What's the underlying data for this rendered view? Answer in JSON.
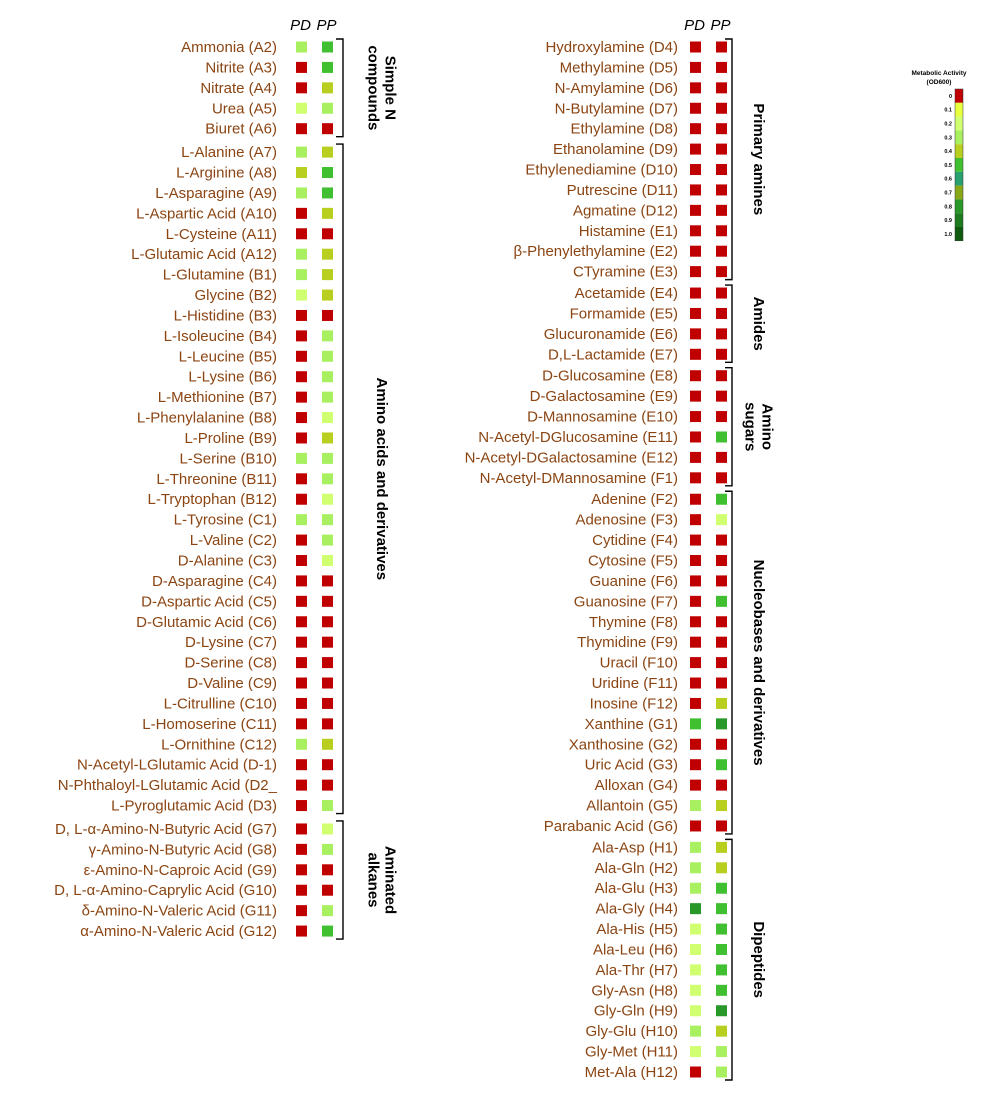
{
  "chart_data": {
    "type": "heatmap",
    "columns": [
      "PD",
      "PP"
    ],
    "legend": {
      "title": "Metabolic Activity",
      "unit": "(OD600)",
      "ticks": [
        "0",
        "0.1",
        "0.2",
        "0.3",
        "0.4",
        "0.5",
        "0.6",
        "0.7",
        "0.8",
        "0.9",
        "1.0"
      ]
    },
    "colors": {
      "0": "#c00000",
      "0.1": "#e8ff40",
      "0.2": "#d0ff70",
      "0.3": "#a8f060",
      "0.4": "#b8cf20",
      "0.5": "#40c030",
      "0.6": "#28a070",
      "0.7": "#88a818",
      "0.8": "#289828",
      "0.9": "#1e7a1e",
      "1.0": "#0f5a0f"
    },
    "panels": [
      {
        "groups": [
          {
            "label": [
              "Simple N",
              "compounds"
            ],
            "rows": [
              {
                "name": "Ammonia (A2)",
                "values": [
                  0.3,
                  0.5
                ]
              },
              {
                "name": "Nitrite (A3)",
                "values": [
                  0,
                  0.5
                ]
              },
              {
                "name": "Nitrate (A4)",
                "values": [
                  0,
                  0.4
                ]
              },
              {
                "name": "Urea (A5)",
                "values": [
                  0.2,
                  0.3
                ]
              },
              {
                "name": "Biuret (A6)",
                "values": [
                  0,
                  0
                ]
              }
            ]
          },
          {
            "label": [
              "Amino acids and derivatives"
            ],
            "rows": [
              {
                "name": "L-Alanine (A7)",
                "values": [
                  0.3,
                  0.4
                ]
              },
              {
                "name": "L-Arginine (A8)",
                "values": [
                  0.4,
                  0.5
                ]
              },
              {
                "name": "L-Asparagine (A9)",
                "values": [
                  0.3,
                  0.5
                ]
              },
              {
                "name": "L-Aspartic Acid (A10)",
                "values": [
                  0,
                  0.4
                ]
              },
              {
                "name": "L-Cysteine (A11)",
                "values": [
                  0,
                  0
                ]
              },
              {
                "name": "L-Glutamic Acid (A12)",
                "values": [
                  0.3,
                  0.4
                ]
              },
              {
                "name": "L-Glutamine (B1)",
                "values": [
                  0.3,
                  0.4
                ]
              },
              {
                "name": "Glycine (B2)",
                "values": [
                  0.2,
                  0.4
                ]
              },
              {
                "name": "L-Histidine (B3)",
                "values": [
                  0,
                  0
                ]
              },
              {
                "name": "L-Isoleucine (B4)",
                "values": [
                  0,
                  0.3
                ]
              },
              {
                "name": "L-Leucine (B5)",
                "values": [
                  0,
                  0.3
                ]
              },
              {
                "name": "L-Lysine (B6)",
                "values": [
                  0,
                  0.3
                ]
              },
              {
                "name": "L-Methionine (B7)",
                "values": [
                  0,
                  0.3
                ]
              },
              {
                "name": "L-Phenylalanine (B8)",
                "values": [
                  0,
                  0.2
                ]
              },
              {
                "name": "L-Proline (B9)",
                "values": [
                  0,
                  0.4
                ]
              },
              {
                "name": "L-Serine (B10)",
                "values": [
                  0.3,
                  0.3
                ]
              },
              {
                "name": "L-Threonine (B11)",
                "values": [
                  0,
                  0.3
                ]
              },
              {
                "name": "L-Tryptophan (B12)",
                "values": [
                  0,
                  0.2
                ]
              },
              {
                "name": "L-Tyrosine (C1)",
                "values": [
                  0.3,
                  0.3
                ]
              },
              {
                "name": "L-Valine (C2)",
                "values": [
                  0,
                  0.3
                ]
              },
              {
                "name": "D-Alanine (C3)",
                "values": [
                  0,
                  0.2
                ]
              },
              {
                "name": "D-Asparagine (C4)",
                "values": [
                  0,
                  0
                ]
              },
              {
                "name": "D-Aspartic Acid (C5)",
                "values": [
                  0,
                  0
                ]
              },
              {
                "name": "D-Glutamic Acid (C6)",
                "values": [
                  0,
                  0
                ]
              },
              {
                "name": "D-Lysine (C7)",
                "values": [
                  0,
                  0
                ]
              },
              {
                "name": "D-Serine (C8)",
                "values": [
                  0,
                  0
                ]
              },
              {
                "name": "D-Valine (C9)",
                "values": [
                  0,
                  0
                ]
              },
              {
                "name": "L-Citrulline (C10)",
                "values": [
                  0,
                  0
                ]
              },
              {
                "name": "L-Homoserine (C11)",
                "values": [
                  0,
                  0
                ]
              },
              {
                "name": "L-Ornithine (C12)",
                "values": [
                  0.3,
                  0.4
                ]
              },
              {
                "name": "N-Acetyl-LGlutamic Acid (D-1)",
                "values": [
                  0,
                  0
                ]
              },
              {
                "name": "N-Phthaloyl-LGlutamic Acid (D2_",
                "values": [
                  0,
                  0
                ]
              },
              {
                "name": "L-Pyroglutamic Acid (D3)",
                "values": [
                  0,
                  0.3
                ]
              }
            ]
          },
          {
            "label": [
              "Aminated",
              "alkanes"
            ],
            "rows": [
              {
                "name": "D, L-α-Amino-N-Butyric Acid (G7)",
                "values": [
                  0,
                  0.2
                ]
              },
              {
                "name": "γ-Amino-N-Butyric Acid (G8)",
                "values": [
                  0,
                  0.3
                ]
              },
              {
                "name": "ε-Amino-N-Caproic Acid (G9)",
                "values": [
                  0,
                  0
                ]
              },
              {
                "name": "D, L-α-Amino-Caprylic Acid (G10)",
                "values": [
                  0,
                  0
                ]
              },
              {
                "name": "δ-Amino-N-Valeric Acid (G11)",
                "values": [
                  0,
                  0.3
                ]
              },
              {
                "name": "α-Amino-N-Valeric Acid (G12)",
                "values": [
                  0,
                  0.5
                ]
              }
            ]
          }
        ]
      },
      {
        "groups": [
          {
            "label": [
              "Primary amines"
            ],
            "rows": [
              {
                "name": "Hydroxylamine (D4)",
                "values": [
                  0,
                  0
                ]
              },
              {
                "name": "Methylamine (D5)",
                "values": [
                  0,
                  0
                ]
              },
              {
                "name": "N-Amylamine (D6)",
                "values": [
                  0,
                  0
                ]
              },
              {
                "name": "N-Butylamine (D7)",
                "values": [
                  0,
                  0
                ]
              },
              {
                "name": "Ethylamine (D8)",
                "values": [
                  0,
                  0
                ]
              },
              {
                "name": "Ethanolamine (D9)",
                "values": [
                  0,
                  0
                ]
              },
              {
                "name": "Ethylenediamine (D10)",
                "values": [
                  0,
                  0
                ]
              },
              {
                "name": "Putrescine (D11)",
                "values": [
                  0,
                  0
                ]
              },
              {
                "name": "Agmatine (D12)",
                "values": [
                  0,
                  0
                ]
              },
              {
                "name": "Histamine (E1)",
                "values": [
                  0,
                  0
                ]
              },
              {
                "name": "β-Phenylethylamine (E2)",
                "values": [
                  0,
                  0
                ]
              },
              {
                "name": "CTyramine (E3)",
                "values": [
                  0,
                  0
                ]
              }
            ]
          },
          {
            "label": [
              "Amides"
            ],
            "rows": [
              {
                "name": "Acetamide (E4)",
                "values": [
                  0,
                  0
                ]
              },
              {
                "name": "Formamide (E5)",
                "values": [
                  0,
                  0
                ]
              },
              {
                "name": "Glucuronamide (E6)",
                "values": [
                  0,
                  0
                ]
              },
              {
                "name": "D,L-Lactamide (E7)",
                "values": [
                  0,
                  0
                ]
              }
            ]
          },
          {
            "label": [
              "Amino",
              "sugars"
            ],
            "rows": [
              {
                "name": "D-Glucosamine (E8)",
                "values": [
                  0,
                  0
                ]
              },
              {
                "name": "D-Galactosamine (E9)",
                "values": [
                  0,
                  0
                ]
              },
              {
                "name": "D-Mannosamine (E10)",
                "values": [
                  0,
                  0
                ]
              },
              {
                "name": "N-Acetyl-DGlucosamine (E11)",
                "values": [
                  0,
                  0.5
                ]
              },
              {
                "name": "N-Acetyl-DGalactosamine (E12)",
                "values": [
                  0,
                  0
                ]
              },
              {
                "name": "N-Acetyl-DMannosamine (F1)",
                "values": [
                  0,
                  0
                ]
              }
            ]
          },
          {
            "label": [
              "Nucleobases and derivatives"
            ],
            "rows": [
              {
                "name": "Adenine (F2)",
                "values": [
                  0,
                  0.5
                ]
              },
              {
                "name": "Adenosine (F3)",
                "values": [
                  0,
                  0.2
                ]
              },
              {
                "name": "Cytidine (F4)",
                "values": [
                  0,
                  0
                ]
              },
              {
                "name": "Cytosine (F5)",
                "values": [
                  0,
                  0
                ]
              },
              {
                "name": "Guanine (F6)",
                "values": [
                  0,
                  0
                ]
              },
              {
                "name": "Guanosine (F7)",
                "values": [
                  0,
                  0.5
                ]
              },
              {
                "name": "Thymine (F8)",
                "values": [
                  0,
                  0
                ]
              },
              {
                "name": "Thymidine (F9)",
                "values": [
                  0,
                  0
                ]
              },
              {
                "name": "Uracil (F10)",
                "values": [
                  0,
                  0
                ]
              },
              {
                "name": "Uridine (F11)",
                "values": [
                  0,
                  0
                ]
              },
              {
                "name": "Inosine (F12)",
                "values": [
                  0,
                  0.4
                ]
              },
              {
                "name": "Xanthine (G1)",
                "values": [
                  0.5,
                  0.8
                ]
              },
              {
                "name": "Xanthosine (G2)",
                "values": [
                  0,
                  0
                ]
              },
              {
                "name": "Uric Acid (G3)",
                "values": [
                  0,
                  0.5
                ]
              },
              {
                "name": "Alloxan (G4)",
                "values": [
                  0,
                  0
                ]
              },
              {
                "name": "Allantoin (G5)",
                "values": [
                  0.3,
                  0.4
                ]
              },
              {
                "name": "Parabanic Acid (G6)",
                "values": [
                  0,
                  0
                ]
              }
            ]
          },
          {
            "label": [
              "Dipeptides"
            ],
            "rows": [
              {
                "name": "Ala-Asp (H1)",
                "values": [
                  0.3,
                  0.4
                ]
              },
              {
                "name": "Ala-Gln (H2)",
                "values": [
                  0.3,
                  0.4
                ]
              },
              {
                "name": "Ala-Glu (H3)",
                "values": [
                  0.3,
                  0.5
                ]
              },
              {
                "name": "Ala-Gly (H4)",
                "values": [
                  0.8,
                  0.5
                ]
              },
              {
                "name": "Ala-His (H5)",
                "values": [
                  0.2,
                  0.5
                ]
              },
              {
                "name": "Ala-Leu (H6)",
                "values": [
                  0.2,
                  0.5
                ]
              },
              {
                "name": "Ala-Thr (H7)",
                "values": [
                  0.2,
                  0.5
                ]
              },
              {
                "name": "Gly-Asn (H8)",
                "values": [
                  0.2,
                  0.5
                ]
              },
              {
                "name": "Gly-Gln (H9)",
                "values": [
                  0.2,
                  0.8
                ]
              },
              {
                "name": "Gly-Glu (H10)",
                "values": [
                  0.3,
                  0.4
                ]
              },
              {
                "name": "Gly-Met (H11)",
                "values": [
                  0.2,
                  0.3
                ]
              },
              {
                "name": "Met-Ala (H12)",
                "values": [
                  0,
                  0.3
                ]
              }
            ]
          }
        ]
      }
    ]
  }
}
